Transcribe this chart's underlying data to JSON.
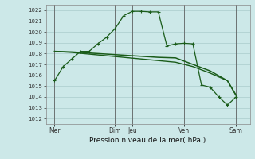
{
  "background_color": "#cce8e8",
  "grid_color": "#aacccc",
  "line_color": "#1a5c1a",
  "vline_color": "#5a5a5a",
  "title": "Pression niveau de la mer( hPa )",
  "ylim": [
    1011.5,
    1022.5
  ],
  "yticks": [
    1012,
    1013,
    1014,
    1015,
    1016,
    1017,
    1018,
    1019,
    1020,
    1021,
    1022
  ],
  "day_positions": [
    0.5,
    4.0,
    5.0,
    8.0,
    11.0
  ],
  "day_labels": [
    "Mer",
    "Dim",
    "Jeu",
    "Ven",
    "Sam"
  ],
  "xlim": [
    0.0,
    11.8
  ],
  "line1_x": [
    0.5,
    1.0,
    1.5,
    2.0,
    2.5,
    3.0,
    3.5,
    4.0,
    4.5,
    5.0,
    5.5,
    6.0,
    6.5,
    7.0,
    7.5,
    8.0,
    8.5,
    9.0,
    9.5,
    10.0,
    10.5,
    11.0
  ],
  "line1_y": [
    1015.5,
    1016.8,
    1017.5,
    1018.2,
    1018.2,
    1018.9,
    1019.5,
    1020.3,
    1021.5,
    1021.9,
    1021.9,
    1021.85,
    1021.85,
    1018.7,
    1018.9,
    1018.95,
    1018.9,
    1015.1,
    1014.9,
    1014.0,
    1013.25,
    1014.0
  ],
  "line2_x": [
    0.5,
    1.5,
    2.5,
    3.5,
    4.5,
    5.5,
    6.5,
    7.5,
    8.5,
    9.5,
    10.5,
    11.0
  ],
  "line2_y": [
    1018.2,
    1018.15,
    1018.05,
    1017.95,
    1017.85,
    1017.75,
    1017.65,
    1017.6,
    1017.0,
    1016.4,
    1015.5,
    1014.15
  ],
  "line3_x": [
    0.5,
    1.5,
    2.5,
    3.5,
    4.5,
    5.5,
    6.5,
    7.5,
    8.5,
    9.5,
    10.5,
    11.0
  ],
  "line3_y": [
    1018.2,
    1018.1,
    1017.95,
    1017.8,
    1017.65,
    1017.5,
    1017.35,
    1017.2,
    1016.8,
    1016.2,
    1015.5,
    1014.15
  ],
  "figsize": [
    3.2,
    2.0
  ],
  "dpi": 100
}
